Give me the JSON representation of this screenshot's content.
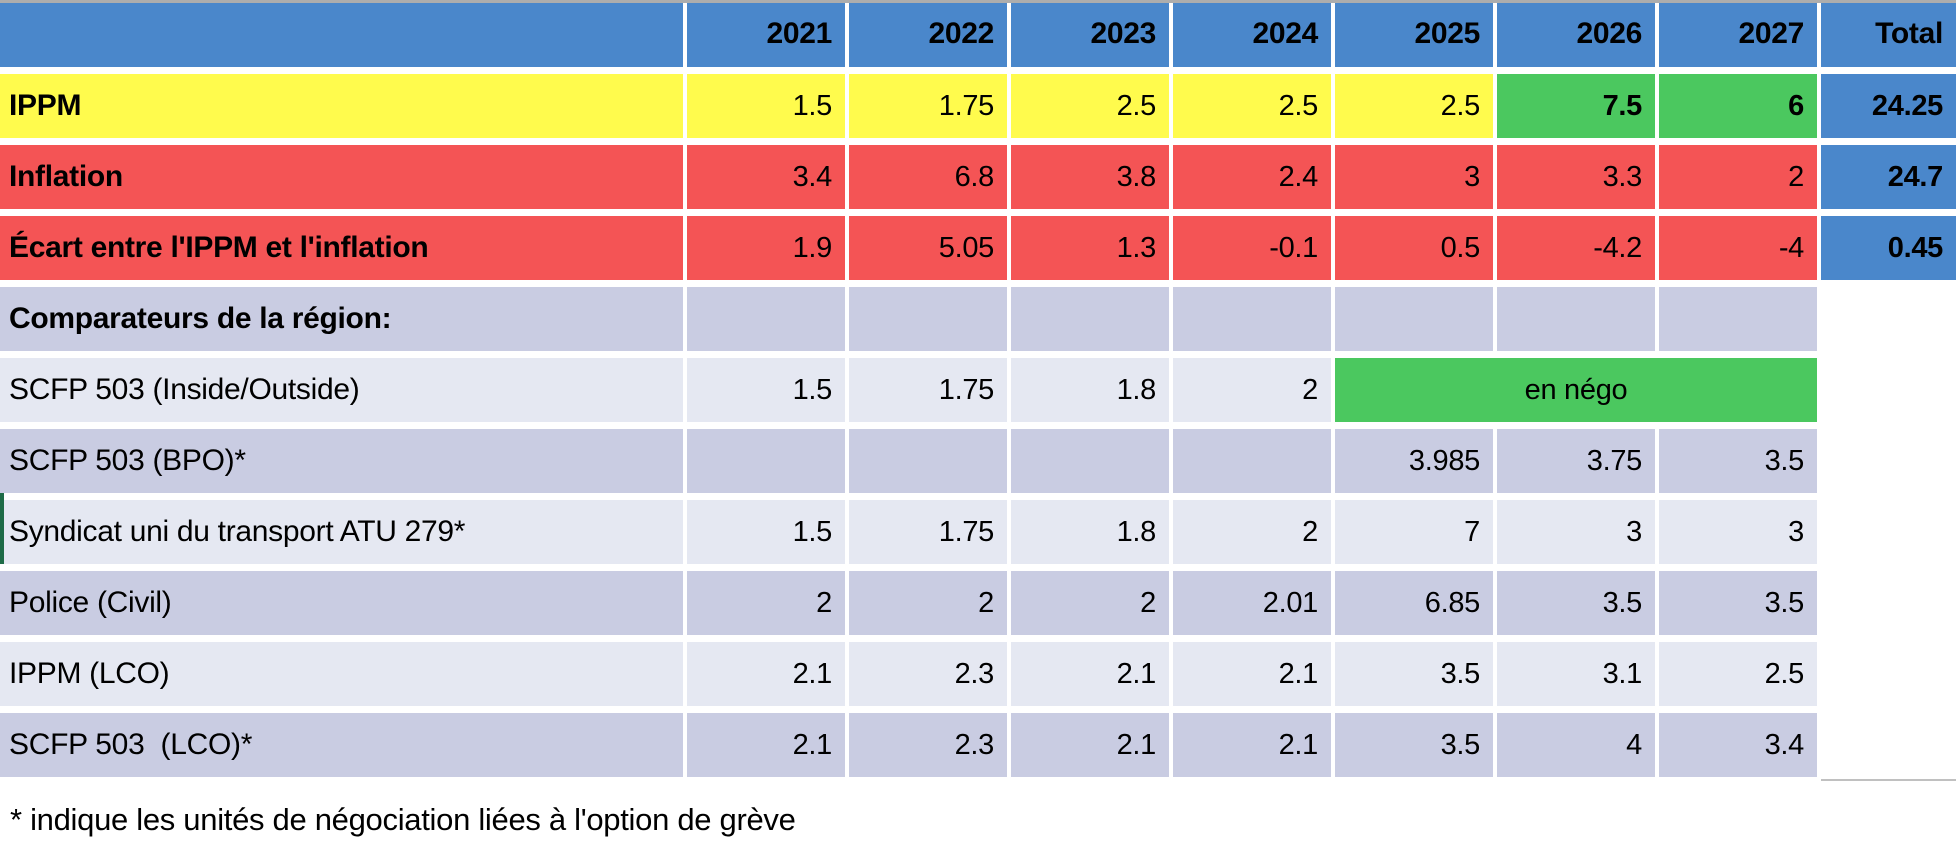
{
  "chart_data": {
    "type": "table",
    "title": "",
    "corner_label": "",
    "years": [
      "2021",
      "2022",
      "2023",
      "2024",
      "2025",
      "2026",
      "2027"
    ],
    "total_label": "Total",
    "rows": [
      {
        "label": "IPPM",
        "bold": true,
        "bg": "yellow",
        "cells": [
          {
            "v": "1.5"
          },
          {
            "v": "1.75"
          },
          {
            "v": "2.5"
          },
          {
            "v": "2.5"
          },
          {
            "v": "2.5"
          },
          {
            "v": "7.5",
            "bg": "green",
            "bold": true
          },
          {
            "v": "6",
            "bg": "green",
            "bold": true
          }
        ],
        "total": {
          "v": "24.25",
          "bg": "total_blue",
          "bold": true
        }
      },
      {
        "label": "Inflation",
        "bold": true,
        "bg": "red",
        "cells": [
          {
            "v": "3.4"
          },
          {
            "v": "6.8"
          },
          {
            "v": "3.8"
          },
          {
            "v": "2.4"
          },
          {
            "v": "3"
          },
          {
            "v": "3.3"
          },
          {
            "v": "2"
          }
        ],
        "total": {
          "v": "24.7",
          "bg": "total_blue",
          "bold": true
        }
      },
      {
        "label": "Écart entre l'IPPM et l'inflation",
        "bold": true,
        "bg": "red",
        "cells": [
          {
            "v": "1.9"
          },
          {
            "v": "5.05"
          },
          {
            "v": "1.3"
          },
          {
            "v": "-0.1"
          },
          {
            "v": "0.5"
          },
          {
            "v": "-4.2"
          },
          {
            "v": "-4"
          }
        ],
        "total": {
          "v": "0.45",
          "bg": "total_blue",
          "bold": true
        }
      },
      {
        "label": "Comparateurs de la région:",
        "bold": true,
        "bg": "row_dark",
        "cells": [
          {
            "v": ""
          },
          {
            "v": ""
          },
          {
            "v": ""
          },
          {
            "v": ""
          },
          {
            "v": ""
          },
          {
            "v": ""
          },
          {
            "v": ""
          }
        ],
        "total": null
      },
      {
        "label": "SCFP 503 (Inside/Outside)",
        "bold": false,
        "bg": "row_light",
        "cells": [
          {
            "v": "1.5"
          },
          {
            "v": "1.75"
          },
          {
            "v": "1.8"
          },
          {
            "v": "2"
          },
          {
            "v": "en négo",
            "bg": "green",
            "span": 3,
            "align": "center"
          }
        ],
        "total": null
      },
      {
        "label": "SCFP 503 (BPO)*",
        "bold": false,
        "bg": "row_dark",
        "cells": [
          {
            "v": ""
          },
          {
            "v": ""
          },
          {
            "v": ""
          },
          {
            "v": ""
          },
          {
            "v": "3.985"
          },
          {
            "v": "3.75"
          },
          {
            "v": "3.5"
          }
        ],
        "total": null
      },
      {
        "label": "Syndicat uni du transport ATU 279*",
        "bold": false,
        "bg": "row_light",
        "accent_strip": true,
        "cells": [
          {
            "v": "1.5"
          },
          {
            "v": "1.75"
          },
          {
            "v": "1.8"
          },
          {
            "v": "2"
          },
          {
            "v": "7"
          },
          {
            "v": "3"
          },
          {
            "v": "3"
          }
        ],
        "total": null
      },
      {
        "label": "Police (Civil)",
        "bold": false,
        "bg": "row_dark",
        "cells": [
          {
            "v": "2"
          },
          {
            "v": "2"
          },
          {
            "v": "2"
          },
          {
            "v": "2.01"
          },
          {
            "v": "6.85"
          },
          {
            "v": "3.5"
          },
          {
            "v": "3.5"
          }
        ],
        "total": null
      },
      {
        "label": "IPPM (LCO)",
        "bold": false,
        "bg": "row_light",
        "cells": [
          {
            "v": "2.1"
          },
          {
            "v": "2.3"
          },
          {
            "v": "2.1"
          },
          {
            "v": "2.1"
          },
          {
            "v": "3.5"
          },
          {
            "v": "3.1"
          },
          {
            "v": "2.5"
          }
        ],
        "total": null
      },
      {
        "label": "SCFP 503  (LCO)*",
        "bold": false,
        "bg": "row_dark",
        "cells": [
          {
            "v": "2.1"
          },
          {
            "v": "2.3"
          },
          {
            "v": "2.1"
          },
          {
            "v": "2.1"
          },
          {
            "v": "3.5"
          },
          {
            "v": "4"
          },
          {
            "v": "3.4"
          }
        ],
        "total": null
      }
    ]
  },
  "footnote": "* indique les unités de négociation liées à l'option de grève",
  "colors": {
    "header_blue": "#4a87cb",
    "total_blue": "#4a87cb",
    "yellow": "#fffb4d",
    "red": "#f45455",
    "green": "#4bc85f",
    "row_dark": "#c9cce2",
    "row_light": "#e5e8f2",
    "accent_strip_green": "#1e6b47",
    "top_border_gray": "#adadad",
    "bottom_line_gray": "#c0c0c0",
    "text": "#000000"
  }
}
